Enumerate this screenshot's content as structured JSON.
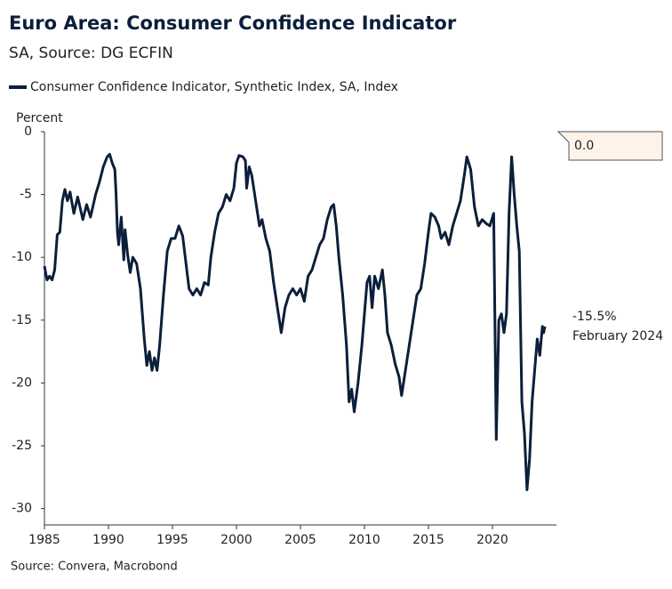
{
  "chart_data": {
    "type": "line",
    "title": "Euro Area: Consumer Confidence Indicator",
    "subtitle": "SA, Source: DG ECFIN",
    "y_axis_label": "Percent",
    "source": "Source: Convera, Macrobond",
    "annotations": [
      "0.0",
      "-15.5%",
      "February 2024"
    ],
    "xlim": [
      1985,
      2025
    ],
    "xticks": [
      1985,
      1990,
      1995,
      2000,
      2005,
      2010,
      2015,
      2020
    ],
    "ylim": [
      -31.3,
      0
    ],
    "yticks": [
      0,
      -5,
      -10,
      -15,
      -20,
      -25,
      -30
    ],
    "x": [
      1985.0,
      1985.2,
      1985.4,
      1985.6,
      1985.8,
      1986.0,
      1986.2,
      1986.4,
      1986.6,
      1986.8,
      1987.0,
      1987.3,
      1987.6,
      1988.0,
      1988.3,
      1988.6,
      1989.0,
      1989.3,
      1989.6,
      1989.9,
      1990.1,
      1990.3,
      1990.5,
      1990.6,
      1990.7,
      1990.8,
      1991.0,
      1991.2,
      1991.3,
      1991.5,
      1991.7,
      1991.9,
      1992.2,
      1992.5,
      1992.8,
      1993.0,
      1993.2,
      1993.4,
      1993.6,
      1993.8,
      1994.0,
      1994.3,
      1994.6,
      1994.9,
      1995.2,
      1995.5,
      1995.8,
      1996.0,
      1996.3,
      1996.6,
      1996.9,
      1997.2,
      1997.5,
      1997.8,
      1998.0,
      1998.3,
      1998.6,
      1998.9,
      1999.2,
      1999.5,
      1999.8,
      2000.0,
      2000.2,
      2000.5,
      2000.7,
      2000.8,
      2001.0,
      2001.2,
      2001.5,
      2001.8,
      2002.0,
      2002.3,
      2002.6,
      2002.9,
      2003.2,
      2003.5,
      2003.8,
      2004.1,
      2004.4,
      2004.7,
      2005.0,
      2005.3,
      2005.6,
      2005.9,
      2006.2,
      2006.5,
      2006.8,
      2007.1,
      2007.4,
      2007.6,
      2007.8,
      2008.0,
      2008.3,
      2008.6,
      2008.8,
      2009.0,
      2009.2,
      2009.5,
      2009.8,
      2010.0,
      2010.2,
      2010.4,
      2010.6,
      2010.8,
      2011.1,
      2011.4,
      2011.6,
      2011.8,
      2012.1,
      2012.4,
      2012.7,
      2012.9,
      2013.2,
      2013.5,
      2013.8,
      2014.1,
      2014.4,
      2014.7,
      2015.0,
      2015.2,
      2015.5,
      2015.8,
      2016.0,
      2016.3,
      2016.6,
      2016.9,
      2017.2,
      2017.5,
      2017.8,
      2018.0,
      2018.3,
      2018.6,
      2018.9,
      2019.2,
      2019.5,
      2019.8,
      2020.1,
      2020.3,
      2020.5,
      2020.7,
      2020.9,
      2021.1,
      2021.3,
      2021.5,
      2021.7,
      2021.9,
      2022.1,
      2022.3,
      2022.5,
      2022.7,
      2022.9,
      2023.1,
      2023.3,
      2023.5,
      2023.7,
      2023.9,
      2024.0,
      2024.1
    ],
    "series": [
      {
        "name": "Consumer Confidence Indicator, Synthetic Index, SA, Index",
        "color": "#0b1f3a",
        "values": [
          -10.7,
          -11.8,
          -11.5,
          -11.8,
          -11.0,
          -8.2,
          -8.0,
          -5.5,
          -4.6,
          -5.5,
          -4.8,
          -6.5,
          -5.2,
          -7.0,
          -5.8,
          -6.8,
          -5.0,
          -4.0,
          -2.8,
          -2.0,
          -1.8,
          -2.5,
          -3.0,
          -5.0,
          -8.0,
          -9.0,
          -6.8,
          -10.2,
          -7.8,
          -9.8,
          -11.2,
          -10.0,
          -10.5,
          -12.5,
          -16.5,
          -18.6,
          -17.5,
          -19.0,
          -18.0,
          -19.0,
          -17.0,
          -13.0,
          -9.5,
          -8.5,
          -8.5,
          -7.5,
          -8.3,
          -10.0,
          -12.5,
          -13.0,
          -12.5,
          -13.0,
          -12.0,
          -12.2,
          -10.0,
          -8.0,
          -6.5,
          -6.0,
          -5.0,
          -5.5,
          -4.5,
          -2.5,
          -1.9,
          -2.0,
          -2.3,
          -4.5,
          -2.8,
          -3.5,
          -5.5,
          -7.5,
          -7.0,
          -8.5,
          -9.5,
          -12.0,
          -14.0,
          -16.0,
          -14.0,
          -13.0,
          -12.5,
          -13.0,
          -12.5,
          -13.5,
          -11.5,
          -11.0,
          -10.0,
          -9.0,
          -8.5,
          -7.0,
          -6.0,
          -5.8,
          -7.5,
          -10.0,
          -13.0,
          -17.0,
          -21.5,
          -20.5,
          -22.3,
          -20.0,
          -17.0,
          -14.5,
          -12.0,
          -11.5,
          -14.0,
          -11.5,
          -12.5,
          -11.0,
          -13.0,
          -16.0,
          -17.0,
          -18.5,
          -19.5,
          -21.0,
          -19.0,
          -17.0,
          -15.0,
          -13.0,
          -12.5,
          -10.5,
          -8.0,
          -6.5,
          -6.8,
          -7.5,
          -8.5,
          -8.0,
          -9.0,
          -7.5,
          -6.5,
          -5.5,
          -3.5,
          -2.0,
          -3.0,
          -6.0,
          -7.5,
          -7.0,
          -7.3,
          -7.5,
          -6.5,
          -24.5,
          -15.0,
          -14.5,
          -16.0,
          -14.5,
          -6.5,
          -2.0,
          -5.0,
          -7.5,
          -9.5,
          -21.5,
          -24.0,
          -28.5,
          -26.0,
          -21.5,
          -19.0,
          -16.5,
          -17.8,
          -15.5,
          -16.0,
          -15.5
        ]
      }
    ]
  }
}
